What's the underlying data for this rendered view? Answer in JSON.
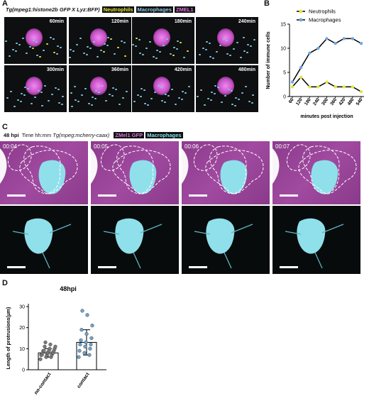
{
  "panels": {
    "a": {
      "letter": "A"
    },
    "b": {
      "letter": "B"
    },
    "c": {
      "letter": "C"
    },
    "d": {
      "letter": "D"
    }
  },
  "panel_a": {
    "title_it": "Tg(mpeg1:histone2b GFP X Lyz:BFP)",
    "legend": [
      {
        "label": "Neutrophils",
        "color": "#e6e63c"
      },
      {
        "label": "Macrophages",
        "color": "#8ec6e8"
      },
      {
        "label": "ZMEL1",
        "color": "#e070e0"
      }
    ],
    "tiles": [
      "60min",
      "120min",
      "180min",
      "240min",
      "300min",
      "360min",
      "420min",
      "480min"
    ]
  },
  "panel_c": {
    "prefix": "48 hpi",
    "time_label": "Time hh:mm",
    "title_it": "Tg(mpeg:mcherry-caax)",
    "legend": [
      {
        "label": "ZMel1 GFP",
        "color": "#e070e0"
      },
      {
        "label": "Macrophages",
        "color": "#7ee0e8"
      }
    ],
    "times": [
      "00:04",
      "00:05",
      "00:06",
      "00:07"
    ]
  },
  "chart_data": [
    {
      "type": "line",
      "panel": "B",
      "categories": [
        "60",
        "120",
        "180",
        "240",
        "300",
        "360",
        "420",
        "480",
        "540"
      ],
      "series": [
        {
          "name": "Neutrophils",
          "values": [
            2,
            4,
            2,
            2,
            3,
            2,
            2,
            2,
            1
          ],
          "color": "#e6e63c"
        },
        {
          "name": "Macrophages",
          "values": [
            3,
            6,
            9,
            10,
            12,
            11,
            12,
            12,
            11
          ],
          "color": "#6fa8e0"
        }
      ],
      "xlabel": "minutes post injection",
      "ylabel": "Number of immune cells",
      "ylim": [
        0,
        15
      ],
      "yticks": [
        0,
        5,
        10,
        15
      ],
      "legend": "top-right"
    },
    {
      "type": "bar",
      "panel": "D",
      "title": "48hpi",
      "categories": [
        "no-contact",
        "contact"
      ],
      "values": [
        8,
        13
      ],
      "errors": [
        2,
        6
      ],
      "points": [
        [
          5,
          6,
          6,
          7,
          7,
          7,
          7,
          8,
          8,
          8,
          8,
          8,
          9,
          9,
          9,
          9,
          10,
          10,
          11,
          11,
          12,
          13
        ],
        [
          6,
          7,
          8,
          9,
          10,
          11,
          12,
          12,
          13,
          14,
          15,
          17,
          19,
          21,
          26,
          28
        ]
      ],
      "point_colors": [
        "#7a7a7a",
        "#6ea3cc"
      ],
      "ylabel": "Length of protrusions(µm)",
      "ylim": [
        0,
        30
      ],
      "yticks": [
        0,
        10,
        20,
        30
      ]
    }
  ]
}
